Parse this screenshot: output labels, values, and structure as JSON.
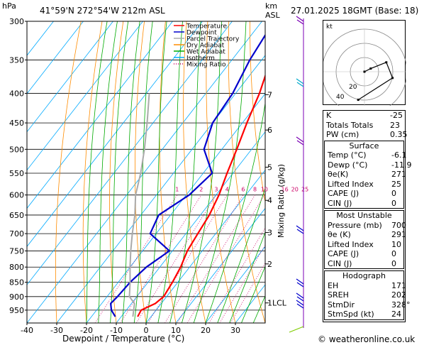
{
  "header": {
    "location": "41°59'N  272°54'W  212m  ASL",
    "datetime": "27.01.2025  18GMT  (Base: 18)",
    "hpa_label": "hPa",
    "km_label": "km",
    "asl_label": "ASL"
  },
  "chart_data": {
    "type": "line",
    "xlabel": "Dewpoint / Temperature (°C)",
    "ylabel": "hPa",
    "y2label": "Mixing Ratio (g/kg)",
    "xlim": [
      -40,
      40
    ],
    "ylim": [
      300,
      1000
    ],
    "y_scale": "log",
    "x_ticks": [
      -40,
      -30,
      -20,
      -10,
      0,
      10,
      20,
      30
    ],
    "pressure_ticks": [
      300,
      350,
      400,
      450,
      500,
      550,
      600,
      650,
      700,
      750,
      800,
      850,
      900,
      950
    ],
    "km_ticks": [
      {
        "label": "7",
        "p": 402
      },
      {
        "label": "6",
        "p": 463
      },
      {
        "label": "5",
        "p": 537
      },
      {
        "label": "4",
        "p": 613
      },
      {
        "label": "3",
        "p": 697
      },
      {
        "label": "2",
        "p": 790
      },
      {
        "label": "1LCL",
        "p": 923
      }
    ],
    "mixing_ratio_labels": [
      "1",
      "2",
      "3",
      "4",
      "6",
      "8",
      "10",
      "16",
      "20",
      "25"
    ],
    "mixing_ratio_values": [
      1,
      2,
      3,
      4,
      6,
      8,
      10,
      16,
      20,
      25
    ],
    "legend": {
      "placement": "top-left",
      "entries": [
        {
          "name": "Temperature",
          "color": "#ff0000",
          "style": "solid"
        },
        {
          "name": "Dewpoint",
          "color": "#0000cc",
          "style": "solid"
        },
        {
          "name": "Parcel Trajectory",
          "color": "#aaaaaa",
          "style": "solid"
        },
        {
          "name": "Dry Adiabat",
          "color": "#ff8c00",
          "style": "solid"
        },
        {
          "name": "Wet Adiabat",
          "color": "#00aa00",
          "style": "solid"
        },
        {
          "name": "Isotherm",
          "color": "#00aaff",
          "style": "solid"
        },
        {
          "name": "Mixing Ratio",
          "color": "#cc0066",
          "style": "dotted"
        }
      ]
    },
    "series": [
      {
        "name": "Temperature",
        "color": "#ff0000",
        "points": [
          [
            -4.5,
            975
          ],
          [
            -5,
            950
          ],
          [
            -2,
            925
          ],
          [
            -1,
            900
          ],
          [
            -1.8,
            850
          ],
          [
            -3,
            800
          ],
          [
            -5,
            750
          ],
          [
            -6,
            700
          ],
          [
            -7,
            650
          ],
          [
            -9,
            600
          ],
          [
            -12,
            550
          ],
          [
            -15,
            500
          ],
          [
            -18.5,
            450
          ],
          [
            -22,
            400
          ],
          [
            -27,
            350
          ],
          [
            -31.5,
            300
          ]
        ]
      },
      {
        "name": "Dewpoint",
        "color": "#0000cc",
        "points": [
          [
            -12,
            975
          ],
          [
            -15,
            950
          ],
          [
            -17,
            925
          ],
          [
            -16.5,
            900
          ],
          [
            -16,
            850
          ],
          [
            -14.5,
            800
          ],
          [
            -11,
            750
          ],
          [
            -22,
            700
          ],
          [
            -24,
            650
          ],
          [
            -19,
            600
          ],
          [
            -17,
            550
          ],
          [
            -26,
            500
          ],
          [
            -30,
            450
          ],
          [
            -31,
            400
          ],
          [
            -34,
            350
          ],
          [
            -36,
            300
          ]
        ]
      },
      {
        "name": "Parcel Trajectory",
        "color": "#aaaaaa",
        "points": [
          [
            -6.1,
            975
          ],
          [
            -9,
            925
          ],
          [
            -12.5,
            900
          ],
          [
            -16,
            850
          ],
          [
            -20,
            800
          ],
          [
            -24,
            750
          ],
          [
            -28,
            700
          ],
          [
            -32,
            650
          ],
          [
            -37,
            600
          ],
          [
            -41,
            550
          ],
          [
            -46,
            500
          ],
          [
            -52,
            450
          ],
          [
            -59,
            400
          ]
        ]
      }
    ]
  },
  "hodograph": {
    "label": "kt",
    "ring_labels": [
      "20",
      "40"
    ],
    "points": [
      [
        0,
        0
      ],
      [
        4,
        2
      ],
      [
        14,
        6
      ],
      [
        18,
        -4
      ],
      [
        -4,
        -18
      ]
    ]
  },
  "indices": {
    "rows": [
      {
        "label": "K",
        "value": "-25"
      },
      {
        "label": "Totals Totals",
        "value": "23"
      },
      {
        "label": "PW (cm)",
        "value": "0.35"
      }
    ]
  },
  "surface": {
    "title": "Surface",
    "rows": [
      {
        "label": "Temp (°C)",
        "value": "-6.1"
      },
      {
        "label": "Dewp (°C)",
        "value": "-11.9"
      },
      {
        "label": "θe(K)",
        "value": "271"
      },
      {
        "label": "Lifted Index",
        "value": "25"
      },
      {
        "label": "CAPE (J)",
        "value": "0"
      },
      {
        "label": "CIN (J)",
        "value": "0"
      }
    ]
  },
  "most_unstable": {
    "title": "Most Unstable",
    "rows": [
      {
        "label": "Pressure (mb)",
        "value": "700"
      },
      {
        "label": "θe (K)",
        "value": "291"
      },
      {
        "label": "Lifted Index",
        "value": "10"
      },
      {
        "label": "CAPE (J)",
        "value": "0"
      },
      {
        "label": "CIN (J)",
        "value": "0"
      }
    ]
  },
  "hodograph_params": {
    "title": "Hodograph",
    "rows": [
      {
        "label": "EH",
        "value": "171"
      },
      {
        "label": "SREH",
        "value": "202"
      },
      {
        "label": "StmDir",
        "value": "328°"
      },
      {
        "label": "StmSpd (kt)",
        "value": "24"
      }
    ]
  },
  "copyright": "© weatheronline.co.uk"
}
